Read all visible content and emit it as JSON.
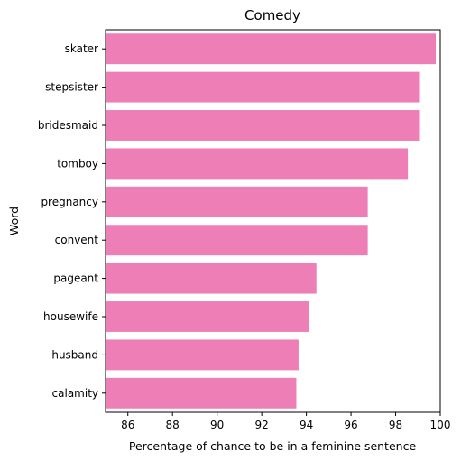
{
  "chart_data": {
    "type": "bar",
    "orientation": "horizontal",
    "title": "Comedy",
    "xlabel": "Percentage of chance to be in a feminine sentence",
    "ylabel": "Word",
    "categories": [
      "skater",
      "stepsister",
      "bridesmaid",
      "tomboy",
      "pregnancy",
      "convent",
      "pageant",
      "housewife",
      "husband",
      "calamity"
    ],
    "values": [
      99.8,
      99.05,
      99.05,
      98.55,
      96.75,
      96.75,
      94.45,
      94.1,
      93.65,
      93.55
    ],
    "xlim": [
      85,
      100
    ],
    "xticks": [
      86,
      88,
      90,
      92,
      94,
      96,
      98,
      100
    ],
    "grid": false,
    "legend": "none",
    "bar_color": "#ee7fb6"
  }
}
